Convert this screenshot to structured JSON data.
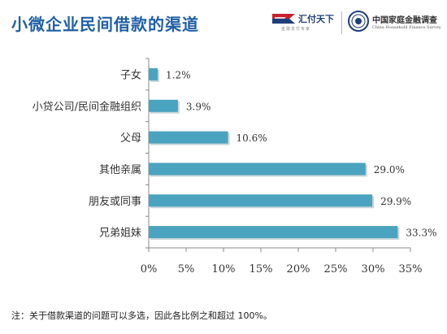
{
  "title": "小微企业民间借款的渠道",
  "logos": {
    "huifu_name": "汇付天下",
    "huifu_tagline": "金融支付专家",
    "survey_cn": "中国家庭金融调查",
    "survey_en": "China Household Finance Survey"
  },
  "note": "注：关于借款渠道的问题可以多选，因此各比例之和超过 100%。",
  "colors": {
    "bar": "#4aa3bf",
    "title": "#1f5fa6",
    "axis": "#888888"
  },
  "chart_data": {
    "type": "bar",
    "orientation": "horizontal",
    "categories": [
      "子女",
      "小贷公司/民间金融组织",
      "父母",
      "其他亲属",
      "朋友或同事",
      "兄弟姐妹"
    ],
    "values": [
      1.2,
      3.9,
      10.6,
      29.0,
      29.9,
      33.3
    ],
    "value_labels": [
      "1.2%",
      "3.9%",
      "10.6%",
      "29.0%",
      "29.9%",
      "33.3%"
    ],
    "xlim": [
      0,
      35
    ],
    "xticks": [
      0,
      5,
      10,
      15,
      20,
      25,
      30,
      35
    ],
    "xtick_labels": [
      "0%",
      "5%",
      "10%",
      "15%",
      "20%",
      "25%",
      "30%",
      "35%"
    ],
    "grid": false,
    "legend": "none"
  }
}
